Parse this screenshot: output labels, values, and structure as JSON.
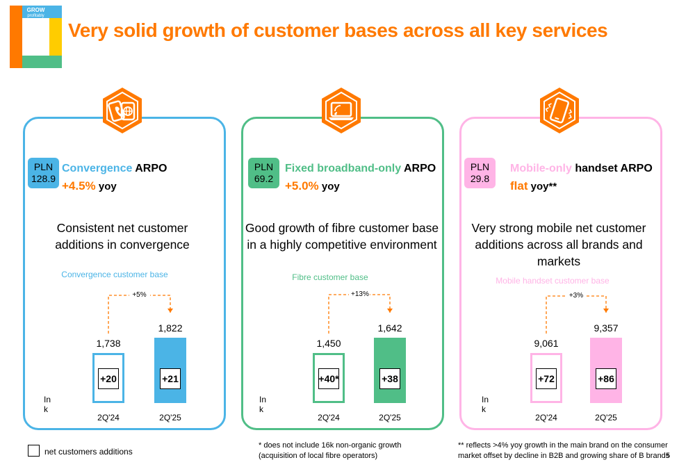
{
  "logo": {
    "line1": "GROW",
    "line2": "profitably"
  },
  "title": "Very solid growth of customer bases across all key services",
  "colors": {
    "orange": "#ff7900",
    "blue": "#4bb4e6",
    "green": "#50be87",
    "pink": "#ffb4e6"
  },
  "panels": [
    {
      "icon": "convergence-devices-icon",
      "pln_label": "PLN",
      "pln_value": "128.9",
      "arpo_name": "Convergence",
      "arpo_suffix": " ARPO",
      "arpo_change": "+4.5%",
      "arpo_change_suffix": " yoy",
      "description_line1": "Consistent net customer",
      "description_line2": "additions in convergence",
      "description_line3": ""
    },
    {
      "icon": "laptop-broadband-icon",
      "pln_label": "PLN",
      "pln_value": "69.2",
      "arpo_name": "Fixed broadband-only",
      "arpo_suffix": " ARPO",
      "arpo_change": "+5.0%",
      "arpo_change_suffix": " yoy",
      "description_line1": "Good growth of fibre customer base",
      "description_line2": "in a highly competitive environment",
      "description_line3": ""
    },
    {
      "icon": "mobile-phone-icon",
      "pln_label": "PLN",
      "pln_value": "29.8",
      "arpo_name": "Mobile-only",
      "arpo_suffix": " handset ARPO",
      "arpo_change": "flat",
      "arpo_change_suffix": " yoy**",
      "description_line1": "Very strong mobile net customer",
      "description_line2": "additions across all brands and",
      "description_line3": "markets"
    }
  ],
  "chart_data": [
    {
      "type": "bar",
      "title": "Convergence customer base",
      "unit_label": "In k",
      "categories": [
        "2Q'24",
        "2Q'25"
      ],
      "values": [
        1738,
        1822
      ],
      "value_labels": [
        "1,738",
        "1,822"
      ],
      "net_additions": [
        "+20",
        "+21"
      ],
      "growth_label": "+5%",
      "ylim": [
        0,
        2000
      ]
    },
    {
      "type": "bar",
      "title": "Fibre customer base",
      "unit_label": "In k",
      "categories": [
        "2Q'24",
        "2Q'25"
      ],
      "values": [
        1450,
        1642
      ],
      "value_labels": [
        "1,450",
        "1,642"
      ],
      "net_additions": [
        "+40*",
        "+38"
      ],
      "growth_label": "+13%",
      "ylim": [
        0,
        1850
      ]
    },
    {
      "type": "bar",
      "title": "Mobile handset customer base",
      "unit_label": "In k",
      "categories": [
        "2Q'24",
        "2Q'25"
      ],
      "values": [
        9061,
        9357
      ],
      "value_labels": [
        "9,061",
        "9,357"
      ],
      "net_additions": [
        "+72",
        "+86"
      ],
      "growth_label": "+3%",
      "ylim": [
        0,
        10000
      ]
    }
  ],
  "legend": {
    "net_additions": "net customers additions"
  },
  "footnotes": {
    "fibre_line1": "* does not include 16k non-organic growth",
    "fibre_line2": "(acquisition of local fibre operators)",
    "mobile_line1": "** reflects >4% yoy growth in the main brand on the consumer",
    "mobile_line2": "market offset by decline in B2B and growing share of B brands"
  },
  "page_number": "5"
}
